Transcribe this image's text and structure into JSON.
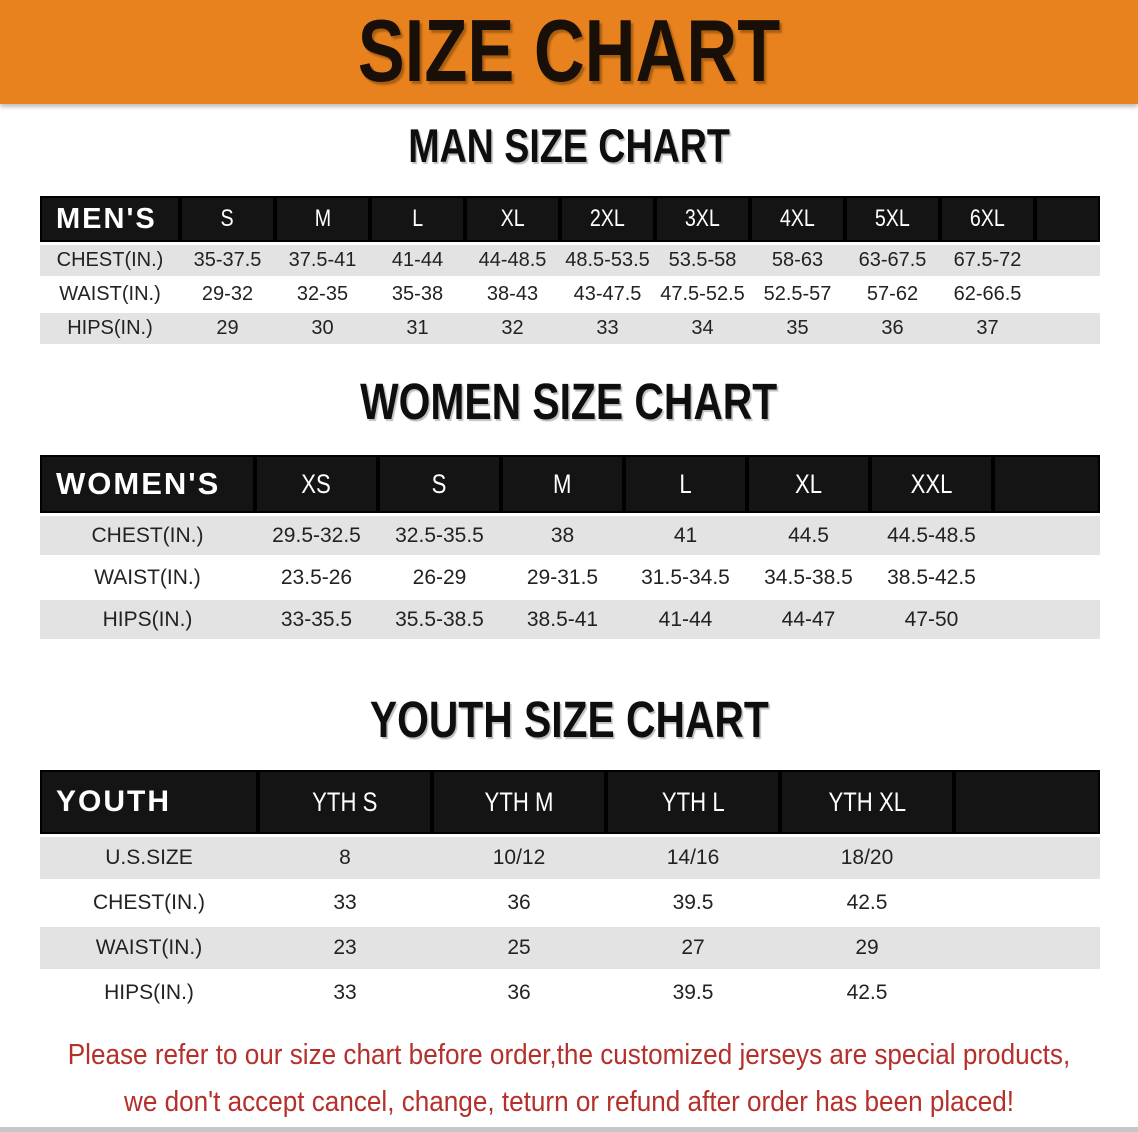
{
  "banner": {
    "title": "SIZE CHART"
  },
  "men_chart": {
    "heading": "MAN SIZE CHART",
    "table": {
      "header": [
        "MEN'S",
        "S",
        "M",
        "L",
        "XL",
        "2XL",
        "3XL",
        "4XL",
        "5XL",
        "6XL"
      ],
      "rows": [
        [
          "CHEST(IN.)",
          "35-37.5",
          "37.5-41",
          "41-44",
          "44-48.5",
          "48.5-53.5",
          "53.5-58",
          "58-63",
          "63-67.5",
          "67.5-72"
        ],
        [
          "WAIST(IN.)",
          "29-32",
          "32-35",
          "35-38",
          "38-43",
          "43-47.5",
          "47.5-52.5",
          "52.5-57",
          "57-62",
          "62-66.5"
        ],
        [
          "HIPS(IN.)",
          "29",
          "30",
          "31",
          "32",
          "33",
          "34",
          "35",
          "36",
          "37"
        ]
      ]
    }
  },
  "women_chart": {
    "heading": "WOMEN SIZE CHART",
    "table": {
      "header": [
        "WOMEN'S",
        "XS",
        "S",
        "M",
        "L",
        "XL",
        "XXL"
      ],
      "rows": [
        [
          "CHEST(IN.)",
          "29.5-32.5",
          "32.5-35.5",
          "38",
          "41",
          "44.5",
          "44.5-48.5"
        ],
        [
          "WAIST(IN.)",
          "23.5-26",
          "26-29",
          "29-31.5",
          "31.5-34.5",
          "34.5-38.5",
          "38.5-42.5"
        ],
        [
          "HIPS(IN.)",
          "33-35.5",
          "35.5-38.5",
          "38.5-41",
          "41-44",
          "44-47",
          "47-50"
        ]
      ]
    }
  },
  "youth_chart": {
    "heading": "YOUTH SIZE CHART",
    "table": {
      "header": [
        "YOUTH",
        "YTH S",
        "YTH M",
        "YTH L",
        "YTH XL"
      ],
      "rows": [
        [
          "U.S.SIZE",
          "8",
          "10/12",
          "14/16",
          "18/20"
        ],
        [
          "CHEST(IN.)",
          "33",
          "36",
          "39.5",
          "42.5"
        ],
        [
          "WAIST(IN.)",
          "23",
          "25",
          "27",
          "29"
        ],
        [
          "HIPS(IN.)",
          "33",
          "36",
          "39.5",
          "42.5"
        ]
      ]
    }
  },
  "disclaimer": {
    "line1": "Please refer to our size chart before order,the customized jerseys are special products,",
    "line2": "we don't accept cancel, change, teturn or refund after order has been placed!"
  },
  "colors": {
    "banner_bg": "#E8821E",
    "header_band_bg": "#141414",
    "row_stripe": "#E3E3E3",
    "disclaimer_red": "#B5302B"
  }
}
